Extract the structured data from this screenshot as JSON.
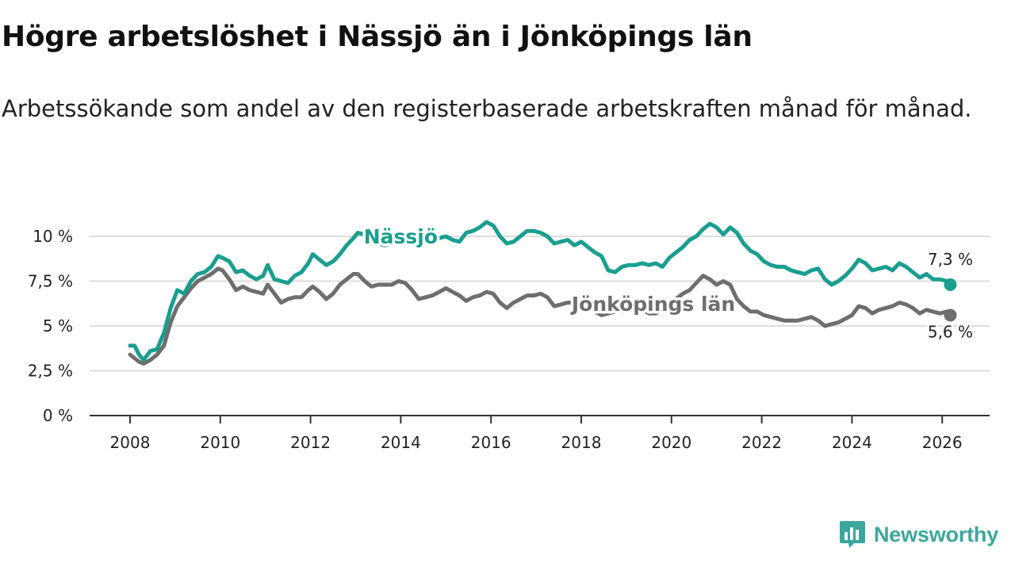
{
  "header": {
    "title": "Högre arbetslöshet i Nässjö än i Jönköpings län",
    "subtitle": "Arbetssökande som andel av den registerbaserade arbetskraften månad för månad."
  },
  "brand": {
    "name": "Newsworthy",
    "color": "#3ba79c"
  },
  "chart_data": {
    "type": "line",
    "title": "Högre arbetslöshet i Nässjö än i Jönköpings län",
    "subtitle": "Arbetssökande som andel av den registerbaserade arbetskraften månad för månad.",
    "xlabel": "",
    "ylabel": "",
    "xlim": [
      2007.6,
      2026.7
    ],
    "ylim": [
      0,
      10
    ],
    "x_ticks": [
      2008,
      2010,
      2012,
      2014,
      2016,
      2018,
      2020,
      2022,
      2024,
      2026
    ],
    "x_tick_labels": [
      "2008",
      "2010",
      "2012",
      "2014",
      "2016",
      "2018",
      "2020",
      "2022",
      "2024",
      "2026"
    ],
    "y_ticks": [
      0,
      2.5,
      5,
      7.5,
      10
    ],
    "y_tick_labels": [
      "0 %",
      "2,5 %",
      "5 %",
      "7,5 %",
      "10 %"
    ],
    "grid": true,
    "legend": "inline labels",
    "series": [
      {
        "name": "Nässjö",
        "color": "#1a9e8f",
        "end_label": "7,3 %",
        "x": [
          2008.0,
          2008.1,
          2008.2,
          2008.3,
          2008.45,
          2008.6,
          2008.75,
          2008.9,
          2009.05,
          2009.2,
          2009.35,
          2009.5,
          2009.65,
          2009.8,
          2009.95,
          2010.05,
          2010.2,
          2010.35,
          2010.5,
          2010.65,
          2010.8,
          2010.95,
          2011.05,
          2011.2,
          2011.35,
          2011.5,
          2011.65,
          2011.8,
          2011.95,
          2012.05,
          2012.2,
          2012.35,
          2012.5,
          2012.65,
          2012.8,
          2012.95,
          2013.05,
          2013.2,
          2013.35,
          2013.5,
          2013.65,
          2013.8,
          2013.95,
          2014.1,
          2014.25,
          2014.4,
          2014.55,
          2014.7,
          2014.85,
          2015.0,
          2015.15,
          2015.3,
          2015.45,
          2015.6,
          2015.75,
          2015.9,
          2016.05,
          2016.2,
          2016.35,
          2016.5,
          2016.65,
          2016.8,
          2016.95,
          2017.1,
          2017.25,
          2017.4,
          2017.55,
          2017.7,
          2017.85,
          2018.0,
          2018.15,
          2018.3,
          2018.45,
          2018.6,
          2018.75,
          2018.9,
          2019.05,
          2019.2,
          2019.35,
          2019.5,
          2019.65,
          2019.8,
          2019.95,
          2020.1,
          2020.25,
          2020.4,
          2020.55,
          2020.7,
          2020.85,
          2021.0,
          2021.15,
          2021.3,
          2021.45,
          2021.6,
          2021.75,
          2021.9,
          2022.05,
          2022.2,
          2022.35,
          2022.5,
          2022.65,
          2022.8,
          2022.95,
          2023.1,
          2023.25,
          2023.4,
          2023.55,
          2023.7,
          2023.85,
          2024.0,
          2024.15,
          2024.3,
          2024.45,
          2024.6,
          2024.75,
          2024.9,
          2025.05,
          2025.2,
          2025.35,
          2025.5,
          2025.65,
          2025.8,
          2025.95,
          2026.1,
          2026.18
        ],
        "values": [
          3.9,
          3.9,
          3.4,
          3.1,
          3.6,
          3.7,
          4.6,
          6.0,
          7.0,
          6.8,
          7.5,
          7.9,
          8.0,
          8.3,
          8.9,
          8.8,
          8.6,
          8.0,
          8.1,
          7.8,
          7.6,
          7.8,
          8.4,
          7.6,
          7.5,
          7.4,
          7.8,
          8.0,
          8.5,
          9.0,
          8.7,
          8.4,
          8.6,
          9.0,
          9.5,
          9.9,
          10.2,
          10.1,
          10.0,
          9.6,
          9.5,
          9.6,
          9.8,
          10.0,
          10.1,
          10.0,
          9.9,
          9.8,
          9.9,
          10.0,
          9.8,
          9.7,
          10.2,
          10.3,
          10.5,
          10.8,
          10.6,
          10.0,
          9.6,
          9.7,
          10.0,
          10.3,
          10.3,
          10.2,
          10.0,
          9.6,
          9.7,
          9.8,
          9.5,
          9.7,
          9.4,
          9.1,
          8.9,
          8.1,
          8.0,
          8.3,
          8.4,
          8.4,
          8.5,
          8.4,
          8.5,
          8.3,
          8.8,
          9.1,
          9.4,
          9.8,
          10.0,
          10.4,
          10.7,
          10.5,
          10.1,
          10.5,
          10.2,
          9.6,
          9.2,
          9.0,
          8.6,
          8.4,
          8.3,
          8.3,
          8.1,
          8.0,
          7.9,
          8.1,
          8.2,
          7.6,
          7.3,
          7.5,
          7.8,
          8.2,
          8.7,
          8.5,
          8.1,
          8.2,
          8.3,
          8.1,
          8.5,
          8.3,
          8.0,
          7.7,
          7.9,
          7.6,
          7.6,
          7.5,
          7.3
        ]
      },
      {
        "name": "Jönköpings län",
        "color": "#6e6e6e",
        "end_label": "5,6 %",
        "x": [
          2008.0,
          2008.1,
          2008.2,
          2008.3,
          2008.45,
          2008.6,
          2008.75,
          2008.9,
          2009.05,
          2009.2,
          2009.35,
          2009.5,
          2009.65,
          2009.8,
          2009.95,
          2010.05,
          2010.2,
          2010.35,
          2010.5,
          2010.65,
          2010.8,
          2010.95,
          2011.05,
          2011.2,
          2011.35,
          2011.5,
          2011.65,
          2011.8,
          2011.95,
          2012.05,
          2012.2,
          2012.35,
          2012.5,
          2012.65,
          2012.8,
          2012.95,
          2013.05,
          2013.2,
          2013.35,
          2013.5,
          2013.65,
          2013.8,
          2013.95,
          2014.1,
          2014.25,
          2014.4,
          2014.55,
          2014.7,
          2014.85,
          2015.0,
          2015.15,
          2015.3,
          2015.45,
          2015.6,
          2015.75,
          2015.9,
          2016.05,
          2016.2,
          2016.35,
          2016.5,
          2016.65,
          2016.8,
          2016.95,
          2017.1,
          2017.25,
          2017.4,
          2017.55,
          2017.7,
          2017.85,
          2018.0,
          2018.15,
          2018.3,
          2018.45,
          2018.6,
          2018.75,
          2018.9,
          2019.05,
          2019.2,
          2019.35,
          2019.5,
          2019.65,
          2019.8,
          2019.95,
          2020.1,
          2020.25,
          2020.4,
          2020.55,
          2020.7,
          2020.85,
          2021.0,
          2021.15,
          2021.3,
          2021.45,
          2021.6,
          2021.75,
          2021.9,
          2022.05,
          2022.2,
          2022.35,
          2022.5,
          2022.65,
          2022.8,
          2022.95,
          2023.1,
          2023.25,
          2023.4,
          2023.55,
          2023.7,
          2023.85,
          2024.0,
          2024.15,
          2024.3,
          2024.45,
          2024.6,
          2024.75,
          2024.9,
          2025.05,
          2025.2,
          2025.35,
          2025.5,
          2025.65,
          2025.8,
          2025.95,
          2026.1,
          2026.18
        ],
        "values": [
          3.4,
          3.2,
          3.0,
          2.9,
          3.1,
          3.4,
          3.9,
          5.2,
          6.1,
          6.6,
          7.1,
          7.5,
          7.7,
          7.9,
          8.2,
          8.1,
          7.6,
          7.0,
          7.2,
          7.0,
          6.9,
          6.8,
          7.3,
          6.8,
          6.3,
          6.5,
          6.6,
          6.6,
          7.0,
          7.2,
          6.9,
          6.5,
          6.8,
          7.3,
          7.6,
          7.9,
          7.9,
          7.5,
          7.2,
          7.3,
          7.3,
          7.3,
          7.5,
          7.4,
          7.0,
          6.5,
          6.6,
          6.7,
          6.9,
          7.1,
          6.9,
          6.7,
          6.4,
          6.6,
          6.7,
          6.9,
          6.8,
          6.3,
          6.0,
          6.3,
          6.5,
          6.7,
          6.7,
          6.8,
          6.6,
          6.1,
          6.2,
          6.3,
          6.3,
          6.3,
          6.2,
          5.8,
          5.6,
          5.7,
          5.8,
          5.8,
          5.9,
          5.9,
          5.9,
          5.7,
          5.7,
          5.9,
          6.2,
          6.5,
          6.8,
          7.0,
          7.4,
          7.8,
          7.6,
          7.3,
          7.5,
          7.3,
          6.5,
          6.1,
          5.8,
          5.8,
          5.6,
          5.5,
          5.4,
          5.3,
          5.3,
          5.3,
          5.4,
          5.5,
          5.3,
          5.0,
          5.1,
          5.2,
          5.4,
          5.6,
          6.1,
          6.0,
          5.7,
          5.9,
          6.0,
          6.1,
          6.3,
          6.2,
          6.0,
          5.7,
          5.9,
          5.8,
          5.7,
          5.8,
          5.6
        ]
      }
    ]
  }
}
